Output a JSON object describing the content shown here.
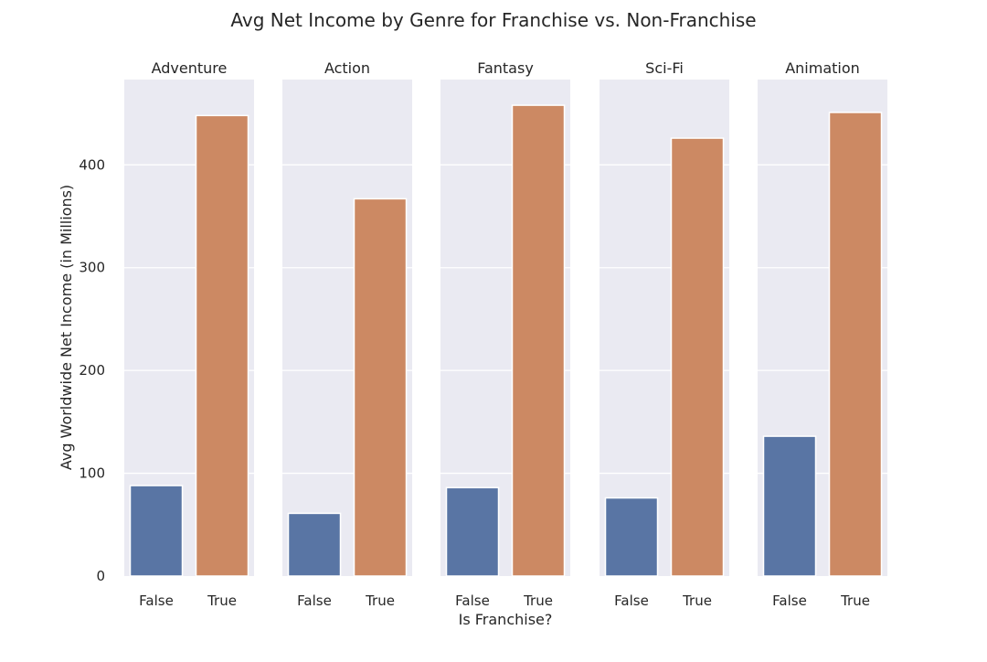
{
  "chart_data": {
    "type": "bar",
    "title": "Avg Net Income by Genre for Franchise vs. Non-Franchise",
    "xlabel": "Is Franchise?",
    "ylabel": "Avg Worldwide Net Income (in Millions)",
    "categories": [
      "False",
      "True"
    ],
    "ylim": [
      0,
      483
    ],
    "yticks": [
      0,
      100,
      200,
      300,
      400
    ],
    "grid": true,
    "colors": {
      "False": "#5975a4",
      "True": "#cc8963",
      "panel_bg": "#eaeaf2",
      "grid": "#ffffff"
    },
    "panels": [
      {
        "title": "Adventure",
        "values": [
          88,
          448
        ]
      },
      {
        "title": "Action",
        "values": [
          61,
          367
        ]
      },
      {
        "title": "Fantasy",
        "values": [
          86,
          458
        ]
      },
      {
        "title": "Sci-Fi",
        "values": [
          76,
          426
        ]
      },
      {
        "title": "Animation",
        "values": [
          136,
          451
        ]
      }
    ]
  }
}
